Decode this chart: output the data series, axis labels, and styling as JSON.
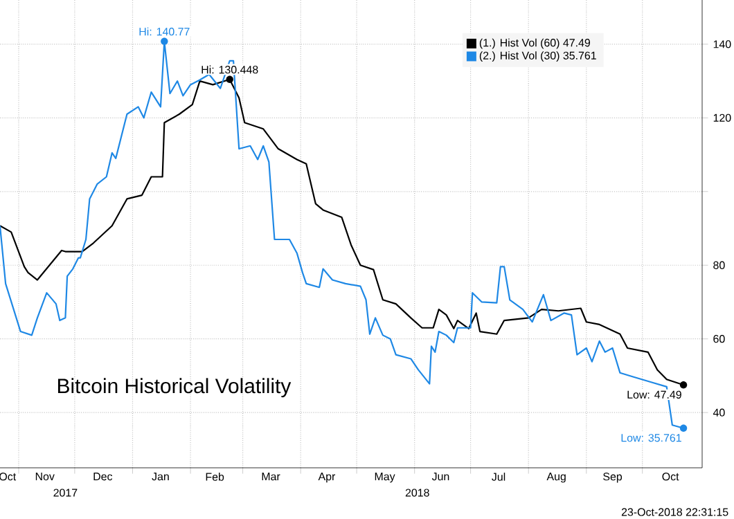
{
  "chart_data": {
    "type": "line",
    "title": "Bitcoin Historical Volatility",
    "xlim": [
      "2017-10-22",
      "2018-11-02"
    ],
    "xticks": [
      {
        "value": "2017-11-01",
        "label": null
      },
      {
        "value": "2017-12-01",
        "label": null
      },
      {
        "value": "2018-01-01",
        "label": null
      },
      {
        "value": "2018-02-01",
        "label": null
      },
      {
        "value": "2018-03-01",
        "label": null
      },
      {
        "value": "2018-04-01",
        "label": null
      },
      {
        "value": "2018-05-01",
        "label": null
      },
      {
        "value": "2018-06-01",
        "label": null
      },
      {
        "value": "2018-07-01",
        "label": null
      },
      {
        "value": "2018-08-01",
        "label": null
      },
      {
        "value": "2018-09-01",
        "label": null
      },
      {
        "value": "2018-10-01",
        "label": null
      },
      {
        "value": "2017-10-26",
        "label": "Oct"
      },
      {
        "value": "2017-11-15",
        "label": "Nov"
      },
      {
        "value": "2017-12-16",
        "label": "Dec"
      },
      {
        "value": "2018-01-16",
        "label": "Jan"
      },
      {
        "value": "2018-02-14",
        "label": "Feb"
      },
      {
        "value": "2018-03-16",
        "label": "Mar"
      },
      {
        "value": "2018-04-15",
        "label": "Apr"
      },
      {
        "value": "2018-05-16",
        "label": "May"
      },
      {
        "value": "2018-06-15",
        "label": "Jun"
      },
      {
        "value": "2018-07-16",
        "label": "Jul"
      },
      {
        "value": "2018-08-16",
        "label": "Aug"
      },
      {
        "value": "2018-09-15",
        "label": "Sep"
      },
      {
        "value": "2018-10-16",
        "label": "Oct"
      }
    ],
    "ylim": [
      25,
      152
    ],
    "yticks": [
      40,
      60,
      80,
      {
        "value": 100,
        "label": null
      },
      120,
      140
    ],
    "grid": true,
    "legend": "top right",
    "line_style": "solid",
    "series": [
      {
        "name": "(1.) Hist Vol (60) 47.49",
        "color": "#000000",
        "x": [
          "2017-10-22",
          "2017-10-28",
          "2017-11-04",
          "2017-11-06",
          "2017-11-11",
          "2017-11-24",
          "2017-11-26",
          "2017-12-05",
          "2017-12-11",
          "2017-12-21",
          "2017-12-29",
          "2018-01-06",
          "2018-01-11",
          "2018-01-17",
          "2018-01-18",
          "2018-01-26",
          "2018-02-02",
          "2018-02-06",
          "2018-02-13",
          "2018-02-22",
          "2018-02-27",
          "2018-03-02",
          "2018-03-12",
          "2018-03-20",
          "2018-03-30",
          "2018-04-04",
          "2018-04-09",
          "2018-04-13",
          "2018-04-23",
          "2018-04-28",
          "2018-05-03",
          "2018-05-10",
          "2018-05-15",
          "2018-05-22",
          "2018-05-30",
          "2018-06-05",
          "2018-06-11",
          "2018-06-14",
          "2018-06-18",
          "2018-06-22",
          "2018-06-24",
          "2018-06-30",
          "2018-07-04",
          "2018-07-06",
          "2018-07-15",
          "2018-07-19",
          "2018-08-01",
          "2018-08-08",
          "2018-08-17",
          "2018-08-29",
          "2018-09-01",
          "2018-09-08",
          "2018-09-19",
          "2018-09-23",
          "2018-10-04",
          "2018-10-09",
          "2018-10-14",
          "2018-10-23"
        ],
        "values": [
          90.7,
          89,
          79.6,
          78,
          76,
          84,
          83.7,
          83.7,
          86,
          90.7,
          98,
          99,
          104,
          104,
          118.7,
          121,
          123.6,
          130,
          129,
          130.448,
          125.4,
          118.7,
          117,
          111.6,
          108.7,
          107.5,
          96.7,
          95,
          93,
          85.5,
          80,
          78.8,
          70.6,
          69.5,
          65.7,
          63,
          63,
          68,
          66.5,
          62.8,
          65,
          62.8,
          67,
          62,
          61.3,
          65,
          65.7,
          68,
          67.6,
          68.3,
          64.6,
          63.9,
          61.3,
          57.5,
          56.4,
          51.6,
          49,
          47.49
        ]
      },
      {
        "name": "(2.) Hist Vol (30) 35.761",
        "color": "#1e88e5",
        "x": [
          "2017-10-22",
          "2017-10-25",
          "2017-11-02",
          "2017-11-08",
          "2017-11-11",
          "2017-11-16",
          "2017-11-21",
          "2017-11-23",
          "2017-11-26",
          "2017-11-27",
          "2017-11-30",
          "2017-12-03",
          "2017-12-04",
          "2017-12-07",
          "2017-12-09",
          "2017-12-13",
          "2017-12-18",
          "2017-12-21",
          "2017-12-23",
          "2017-12-29",
          "2018-01-04",
          "2018-01-07",
          "2018-01-11",
          "2018-01-16",
          "2018-01-18",
          "2018-01-21",
          "2018-01-25",
          "2018-01-28",
          "2018-02-01",
          "2018-02-06",
          "2018-02-11",
          "2018-02-17",
          "2018-02-22",
          "2018-02-24",
          "2018-02-27",
          "2018-03-05",
          "2018-03-09",
          "2018-03-12",
          "2018-03-15",
          "2018-03-18",
          "2018-03-26",
          "2018-03-30",
          "2018-04-02",
          "2018-04-04",
          "2018-04-11",
          "2018-04-13",
          "2018-04-18",
          "2018-04-25",
          "2018-05-03",
          "2018-05-06",
          "2018-05-08",
          "2018-05-11",
          "2018-05-15",
          "2018-05-19",
          "2018-05-22",
          "2018-05-30",
          "2018-06-03",
          "2018-06-09",
          "2018-06-10",
          "2018-06-12",
          "2018-06-14",
          "2018-06-18",
          "2018-06-22",
          "2018-06-24",
          "2018-07-01",
          "2018-07-02",
          "2018-07-07",
          "2018-07-15",
          "2018-07-17",
          "2018-07-19",
          "2018-07-22",
          "2018-07-29",
          "2018-08-03",
          "2018-08-09",
          "2018-08-13",
          "2018-08-20",
          "2018-08-24",
          "2018-08-27",
          "2018-09-01",
          "2018-09-04",
          "2018-09-08",
          "2018-09-11",
          "2018-09-15",
          "2018-09-19",
          "2018-09-26",
          "2018-10-06",
          "2018-10-14",
          "2018-10-17",
          "2018-10-23"
        ],
        "values": [
          90.7,
          75,
          62,
          61,
          65.7,
          72.5,
          69.5,
          65,
          65.7,
          77,
          79,
          82,
          82,
          87,
          98,
          102,
          104,
          110.5,
          109,
          121,
          123,
          120,
          127,
          123,
          140.77,
          126.6,
          130,
          126,
          129,
          130.3,
          131.8,
          128,
          135.5,
          135.5,
          111.6,
          112.4,
          108.7,
          112.4,
          108,
          87,
          87,
          83.3,
          78,
          75,
          74,
          79,
          76,
          75,
          74.3,
          70.6,
          61.3,
          65.7,
          61,
          60,
          55.7,
          54.6,
          51.6,
          47.8,
          58,
          56.4,
          62,
          61,
          59,
          63,
          63,
          72.5,
          70,
          69.8,
          79.6,
          79.6,
          70.6,
          68,
          64.6,
          72,
          65,
          67,
          66.5,
          55.7,
          57.5,
          53.8,
          59.4,
          56.4,
          57.5,
          50.8,
          49.7,
          48.2,
          47,
          36.6,
          35.761
        ]
      }
    ],
    "annotations": [
      {
        "text": "Hi: 140.77",
        "x": "2018-01-18",
        "y": 140.77
      },
      {
        "text": "Hi: 130.448",
        "x": "2018-02-22",
        "y": 130.448
      },
      {
        "text": "Low: 47.49",
        "x": "2018-10-23",
        "y": 47.49
      },
      {
        "text": "Low: 35.761",
        "x": "2018-10-23",
        "y": 35.761
      },
      "2017",
      "2018",
      "23-Oct-2018 22:31:15"
    ]
  }
}
